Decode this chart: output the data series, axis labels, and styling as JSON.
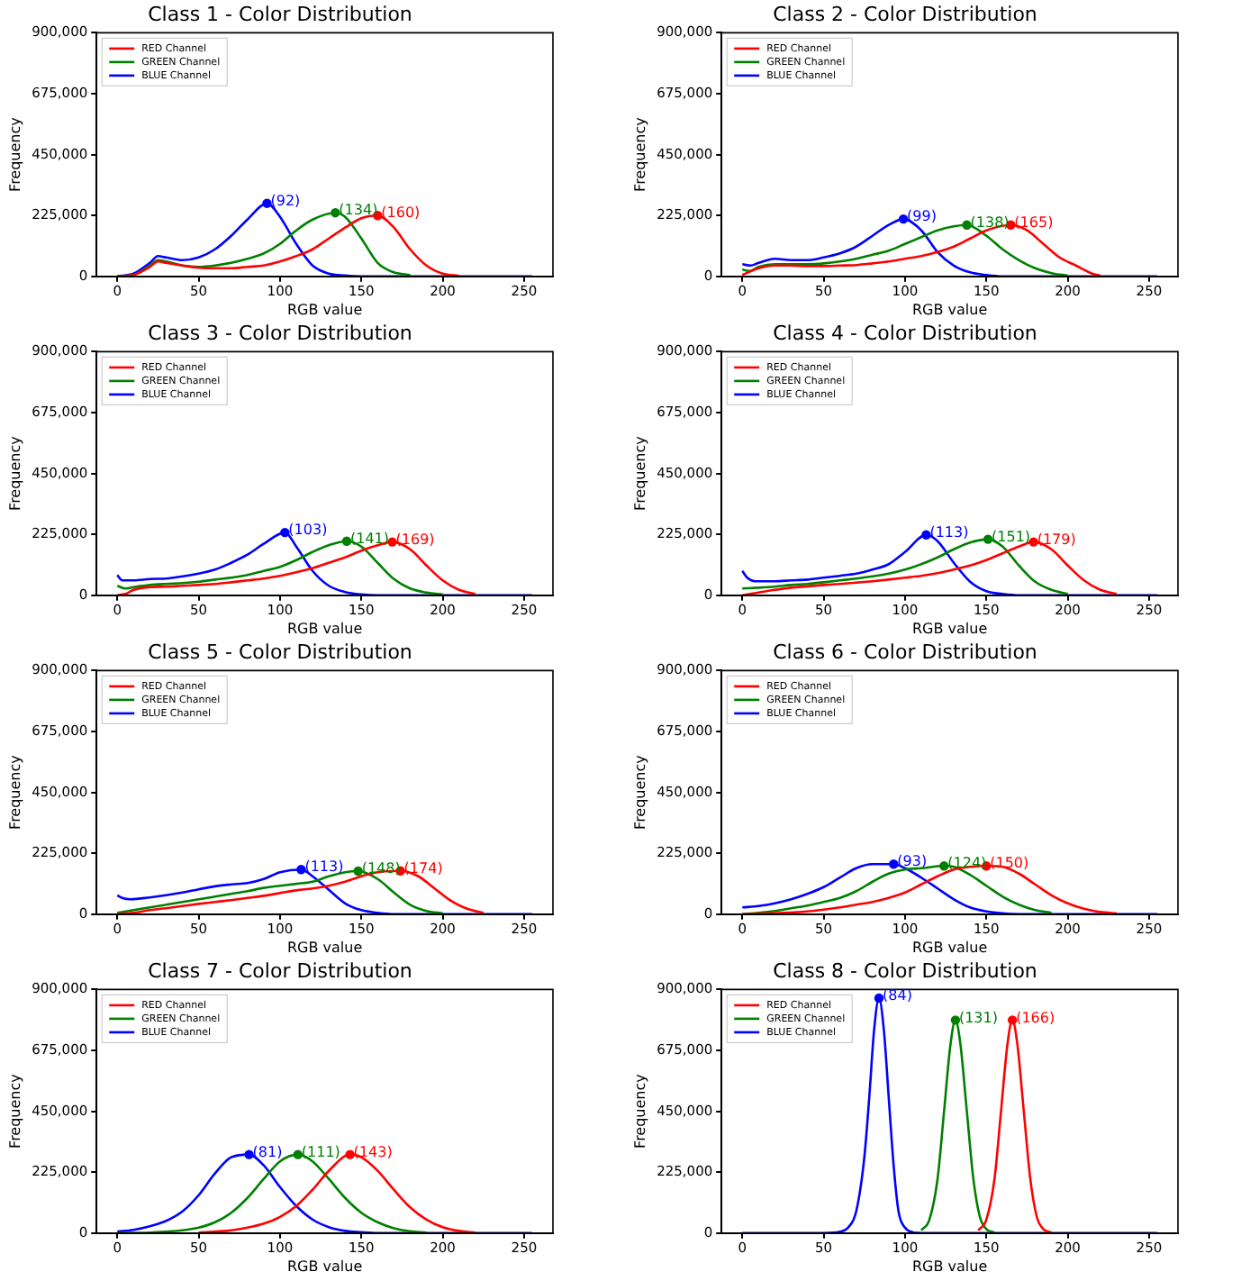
{
  "chart_data": [
    {
      "type": "line",
      "title": "Class 1 - Color Distribution",
      "xlabel": "RGB value",
      "ylabel": "Frequency",
      "legend": "top left",
      "xlim": [
        -12.75,
        267.75
      ],
      "xticks": [
        0,
        50,
        100,
        150,
        200,
        250
      ],
      "ylim": [
        0,
        900000
      ],
      "yticks": [
        {
          "value": 0,
          "label": "0"
        },
        {
          "value": 225000,
          "label": "225,000"
        },
        {
          "value": 450000,
          "label": "450,000"
        },
        {
          "value": 675000,
          "label": "675,000"
        },
        {
          "value": 900000,
          "label": "900,000"
        }
      ],
      "series": [
        {
          "name": "RED Channel",
          "color": "#ff0000",
          "x": [
            0,
            10,
            20,
            25,
            30,
            40,
            50,
            60,
            70,
            80,
            90,
            100,
            110,
            120,
            130,
            140,
            150,
            160,
            170,
            180,
            190,
            200,
            210
          ],
          "values": [
            0,
            5000,
            35000,
            55000,
            50000,
            40000,
            32000,
            30000,
            30000,
            35000,
            40000,
            55000,
            75000,
            100000,
            140000,
            180000,
            215000,
            225000,
            180000,
            100000,
            40000,
            10000,
            2000
          ]
        },
        {
          "name": "GREEN Channel",
          "color": "#008000",
          "x": [
            0,
            10,
            20,
            25,
            30,
            40,
            50,
            60,
            70,
            80,
            90,
            100,
            110,
            120,
            134,
            140,
            150,
            160,
            170,
            180
          ],
          "values": [
            0,
            5000,
            40000,
            60000,
            55000,
            40000,
            35000,
            40000,
            50000,
            65000,
            85000,
            120000,
            170000,
            210000,
            235000,
            220000,
            140000,
            50000,
            15000,
            5000
          ]
        },
        {
          "name": "BLUE Channel",
          "color": "#0000ff",
          "x": [
            0,
            10,
            20,
            25,
            30,
            40,
            50,
            60,
            70,
            80,
            92,
            100,
            110,
            120,
            130,
            140,
            150,
            255
          ],
          "values": [
            0,
            10000,
            50000,
            75000,
            70000,
            60000,
            70000,
            100000,
            150000,
            210000,
            270000,
            220000,
            120000,
            40000,
            10000,
            3000,
            0,
            0
          ]
        }
      ],
      "annotations": [
        {
          "text": "(160)",
          "x": 160,
          "y": 225000
        },
        {
          "text": "(134)",
          "x": 134,
          "y": 235000
        },
        {
          "text": "(92)",
          "x": 92,
          "y": 270000
        }
      ]
    },
    {
      "type": "line",
      "title": "Class 2 - Color Distribution",
      "xlabel": "RGB value",
      "ylabel": "Frequency",
      "legend": "top left",
      "xlim": [
        -12.75,
        267.75
      ],
      "xticks": [
        0,
        50,
        100,
        150,
        200,
        250
      ],
      "ylim": [
        0,
        900000
      ],
      "yticks": [
        {
          "value": 0,
          "label": "0"
        },
        {
          "value": 225000,
          "label": "225,000"
        },
        {
          "value": 450000,
          "label": "450,000"
        },
        {
          "value": 675000,
          "label": "675,000"
        },
        {
          "value": 900000,
          "label": "900,000"
        }
      ],
      "series": [
        {
          "name": "RED Channel",
          "color": "#ff0000",
          "x": [
            0,
            10,
            20,
            30,
            40,
            50,
            60,
            70,
            80,
            90,
            100,
            110,
            120,
            130,
            140,
            150,
            165,
            175,
            185,
            195,
            205,
            215,
            220
          ],
          "values": [
            5000,
            30000,
            40000,
            40000,
            38000,
            38000,
            40000,
            42000,
            48000,
            55000,
            65000,
            75000,
            90000,
            110000,
            140000,
            170000,
            190000,
            170000,
            120000,
            70000,
            40000,
            10000,
            3000
          ]
        },
        {
          "name": "GREEN Channel",
          "color": "#008000",
          "x": [
            0,
            5,
            10,
            20,
            30,
            40,
            50,
            60,
            70,
            80,
            90,
            100,
            110,
            120,
            130,
            138,
            150,
            160,
            170,
            180,
            190,
            200
          ],
          "values": [
            25000,
            20000,
            35000,
            45000,
            45000,
            45000,
            48000,
            55000,
            65000,
            80000,
            95000,
            120000,
            145000,
            170000,
            185000,
            190000,
            150000,
            100000,
            60000,
            30000,
            12000,
            3000
          ]
        },
        {
          "name": "BLUE Channel",
          "color": "#0000ff",
          "x": [
            0,
            5,
            10,
            20,
            30,
            40,
            50,
            60,
            70,
            80,
            90,
            99,
            110,
            120,
            130,
            140,
            150,
            160,
            255
          ],
          "values": [
            45000,
            40000,
            50000,
            65000,
            60000,
            60000,
            70000,
            85000,
            110000,
            150000,
            190000,
            212000,
            170000,
            90000,
            40000,
            15000,
            5000,
            0,
            0
          ]
        }
      ],
      "annotations": [
        {
          "text": "(165)",
          "x": 165,
          "y": 190000
        },
        {
          "text": "(138)",
          "x": 138,
          "y": 190000
        },
        {
          "text": "(99)",
          "x": 99,
          "y": 212000
        }
      ]
    },
    {
      "type": "line",
      "title": "Class 3 - Color Distribution",
      "xlabel": "RGB value",
      "ylabel": "Frequency",
      "legend": "top left",
      "xlim": [
        -12.75,
        267.75
      ],
      "xticks": [
        0,
        50,
        100,
        150,
        200,
        250
      ],
      "ylim": [
        0,
        900000
      ],
      "yticks": [
        {
          "value": 0,
          "label": "0"
        },
        {
          "value": 225000,
          "label": "225,000"
        },
        {
          "value": 450000,
          "label": "450,000"
        },
        {
          "value": 675000,
          "label": "675,000"
        },
        {
          "value": 900000,
          "label": "900,000"
        }
      ],
      "series": [
        {
          "name": "RED Channel",
          "color": "#ff0000",
          "x": [
            0,
            5,
            10,
            20,
            30,
            40,
            50,
            60,
            70,
            80,
            90,
            100,
            110,
            120,
            130,
            140,
            150,
            160,
            169,
            180,
            190,
            200,
            210,
            220
          ],
          "values": [
            0,
            5000,
            20000,
            30000,
            32000,
            35000,
            38000,
            42000,
            48000,
            55000,
            62000,
            72000,
            85000,
            100000,
            120000,
            140000,
            165000,
            185000,
            197000,
            170000,
            110000,
            55000,
            20000,
            5000
          ]
        },
        {
          "name": "GREEN Channel",
          "color": "#008000",
          "x": [
            0,
            5,
            10,
            20,
            30,
            40,
            50,
            60,
            70,
            80,
            90,
            100,
            110,
            120,
            130,
            141,
            150,
            160,
            170,
            180,
            190,
            200
          ],
          "values": [
            35000,
            25000,
            30000,
            38000,
            42000,
            45000,
            50000,
            58000,
            65000,
            75000,
            90000,
            105000,
            130000,
            160000,
            185000,
            200000,
            180000,
            120000,
            60000,
            25000,
            10000,
            3000
          ]
        },
        {
          "name": "BLUE Channel",
          "color": "#0000ff",
          "x": [
            0,
            3,
            10,
            20,
            30,
            40,
            50,
            60,
            70,
            80,
            90,
            103,
            110,
            120,
            130,
            140,
            150,
            160,
            255
          ],
          "values": [
            75000,
            55000,
            55000,
            60000,
            62000,
            70000,
            80000,
            95000,
            120000,
            150000,
            190000,
            232000,
            180000,
            90000,
            35000,
            12000,
            3000,
            0,
            0
          ]
        }
      ],
      "annotations": [
        {
          "text": "(169)",
          "x": 169,
          "y": 197000
        },
        {
          "text": "(141)",
          "x": 141,
          "y": 200000
        },
        {
          "text": "(103)",
          "x": 103,
          "y": 232000
        }
      ]
    },
    {
      "type": "line",
      "title": "Class 4 - Color Distribution",
      "xlabel": "RGB value",
      "ylabel": "Frequency",
      "legend": "top left",
      "xlim": [
        -12.75,
        267.75
      ],
      "xticks": [
        0,
        50,
        100,
        150,
        200,
        250
      ],
      "ylim": [
        0,
        900000
      ],
      "yticks": [
        {
          "value": 0,
          "label": "0"
        },
        {
          "value": 225000,
          "label": "225,000"
        },
        {
          "value": 450000,
          "label": "450,000"
        },
        {
          "value": 675000,
          "label": "675,000"
        },
        {
          "value": 900000,
          "label": "900,000"
        }
      ],
      "series": [
        {
          "name": "RED Channel",
          "color": "#ff0000",
          "x": [
            0,
            10,
            20,
            30,
            40,
            50,
            60,
            70,
            80,
            90,
            100,
            110,
            120,
            130,
            140,
            150,
            160,
            170,
            179,
            190,
            200,
            210,
            220,
            230
          ],
          "values": [
            0,
            10000,
            20000,
            28000,
            33000,
            38000,
            42000,
            47000,
            52000,
            58000,
            65000,
            72000,
            82000,
            95000,
            110000,
            130000,
            155000,
            180000,
            197000,
            170000,
            110000,
            55000,
            20000,
            5000
          ]
        },
        {
          "name": "GREEN Channel",
          "color": "#008000",
          "x": [
            0,
            10,
            20,
            30,
            40,
            50,
            60,
            70,
            80,
            90,
            100,
            110,
            120,
            130,
            140,
            151,
            160,
            170,
            180,
            190,
            200
          ],
          "values": [
            25000,
            28000,
            32000,
            38000,
            42000,
            48000,
            55000,
            62000,
            70000,
            80000,
            95000,
            115000,
            140000,
            170000,
            195000,
            207000,
            180000,
            110000,
            50000,
            20000,
            5000
          ]
        },
        {
          "name": "BLUE Channel",
          "color": "#0000ff",
          "x": [
            0,
            3,
            8,
            20,
            30,
            40,
            50,
            60,
            70,
            80,
            90,
            100,
            113,
            120,
            130,
            140,
            150,
            160,
            170,
            255
          ],
          "values": [
            90000,
            65000,
            52000,
            52000,
            55000,
            58000,
            65000,
            72000,
            80000,
            95000,
            115000,
            160000,
            223000,
            200000,
            120000,
            50000,
            15000,
            5000,
            0,
            0
          ]
        }
      ],
      "annotations": [
        {
          "text": "(179)",
          "x": 179,
          "y": 197000
        },
        {
          "text": "(151)",
          "x": 151,
          "y": 207000
        },
        {
          "text": "(113)",
          "x": 113,
          "y": 223000
        }
      ]
    },
    {
      "type": "line",
      "title": "Class 5 - Color Distribution",
      "xlabel": "RGB value",
      "ylabel": "Frequency",
      "legend": "top left",
      "xlim": [
        -12.75,
        267.75
      ],
      "xticks": [
        0,
        50,
        100,
        150,
        200,
        250
      ],
      "ylim": [
        0,
        900000
      ],
      "yticks": [
        {
          "value": 0,
          "label": "0"
        },
        {
          "value": 225000,
          "label": "225,000"
        },
        {
          "value": 450000,
          "label": "450,000"
        },
        {
          "value": 675000,
          "label": "675,000"
        },
        {
          "value": 900000,
          "label": "900,000"
        }
      ],
      "series": [
        {
          "name": "RED Channel",
          "color": "#ff0000",
          "x": [
            0,
            10,
            20,
            30,
            40,
            50,
            60,
            70,
            80,
            90,
            100,
            110,
            120,
            130,
            140,
            150,
            160,
            174,
            185,
            195,
            205,
            215,
            225
          ],
          "values": [
            0,
            5000,
            15000,
            22000,
            30000,
            38000,
            45000,
            52000,
            60000,
            68000,
            78000,
            88000,
            95000,
            105000,
            120000,
            140000,
            155000,
            160000,
            140000,
            95000,
            50000,
            20000,
            5000
          ]
        },
        {
          "name": "GREEN Channel",
          "color": "#008000",
          "x": [
            0,
            10,
            20,
            30,
            40,
            50,
            60,
            70,
            80,
            90,
            100,
            110,
            120,
            130,
            140,
            148,
            160,
            170,
            180,
            190,
            200
          ],
          "values": [
            5000,
            15000,
            25000,
            35000,
            45000,
            55000,
            65000,
            75000,
            85000,
            97000,
            105000,
            112000,
            120000,
            140000,
            155000,
            159000,
            130000,
            80000,
            35000,
            12000,
            3000
          ]
        },
        {
          "name": "BLUE Channel",
          "color": "#0000ff",
          "x": [
            0,
            3,
            8,
            20,
            30,
            40,
            50,
            60,
            70,
            80,
            90,
            100,
            113,
            120,
            130,
            140,
            150,
            160,
            170,
            255
          ],
          "values": [
            70000,
            60000,
            55000,
            62000,
            70000,
            80000,
            92000,
            103000,
            110000,
            115000,
            130000,
            155000,
            165000,
            140000,
            90000,
            40000,
            15000,
            5000,
            0,
            0
          ]
        }
      ],
      "annotations": [
        {
          "text": "(174)",
          "x": 174,
          "y": 160000
        },
        {
          "text": "(148)",
          "x": 148,
          "y": 159000
        },
        {
          "text": "(113)",
          "x": 113,
          "y": 165000
        }
      ]
    },
    {
      "type": "line",
      "title": "Class 6 - Color Distribution",
      "xlabel": "RGB value",
      "ylabel": "Frequency",
      "legend": "top left",
      "xlim": [
        -12.75,
        267.75
      ],
      "xticks": [
        0,
        50,
        100,
        150,
        200,
        250
      ],
      "ylim": [
        0,
        900000
      ],
      "yticks": [
        {
          "value": 0,
          "label": "0"
        },
        {
          "value": 225000,
          "label": "225,000"
        },
        {
          "value": 450000,
          "label": "450,000"
        },
        {
          "value": 675000,
          "label": "675,000"
        },
        {
          "value": 900000,
          "label": "900,000"
        }
      ],
      "series": [
        {
          "name": "RED Channel",
          "color": "#ff0000",
          "x": [
            0,
            20,
            40,
            60,
            70,
            80,
            90,
            100,
            110,
            120,
            130,
            140,
            150,
            160,
            170,
            180,
            190,
            200,
            210,
            220,
            230
          ],
          "values": [
            0,
            3000,
            10000,
            25000,
            35000,
            45000,
            60000,
            80000,
            110000,
            140000,
            165000,
            175000,
            178000,
            175000,
            150000,
            110000,
            70000,
            40000,
            20000,
            8000,
            3000
          ]
        },
        {
          "name": "GREEN Channel",
          "color": "#008000",
          "x": [
            0,
            10,
            20,
            30,
            40,
            50,
            60,
            70,
            80,
            90,
            100,
            110,
            124,
            130,
            140,
            150,
            160,
            170,
            180,
            190
          ],
          "values": [
            0,
            5000,
            12000,
            22000,
            32000,
            45000,
            60000,
            85000,
            120000,
            150000,
            165000,
            170000,
            178000,
            175000,
            145000,
            105000,
            65000,
            35000,
            15000,
            5000
          ]
        },
        {
          "name": "BLUE Channel",
          "color": "#0000ff",
          "x": [
            0,
            10,
            20,
            30,
            40,
            50,
            60,
            70,
            80,
            93,
            100,
            110,
            120,
            130,
            140,
            150,
            160,
            170,
            255
          ],
          "values": [
            25000,
            30000,
            40000,
            55000,
            75000,
            100000,
            135000,
            170000,
            185000,
            185000,
            170000,
            135000,
            95000,
            55000,
            25000,
            10000,
            3000,
            0,
            0
          ]
        }
      ],
      "annotations": [
        {
          "text": "(150)",
          "x": 150,
          "y": 178000
        },
        {
          "text": "(124)",
          "x": 124,
          "y": 178000
        },
        {
          "text": "(93)",
          "x": 93,
          "y": 185000
        }
      ]
    },
    {
      "type": "line",
      "title": "Class 7 - Color Distribution",
      "xlabel": "RGB value",
      "ylabel": "Frequency",
      "legend": "top left",
      "xlim": [
        -12.75,
        267.75
      ],
      "xticks": [
        0,
        50,
        100,
        150,
        200,
        250
      ],
      "ylim": [
        0,
        900000
      ],
      "yticks": [
        {
          "value": 0,
          "label": "0"
        },
        {
          "value": 225000,
          "label": "225,000"
        },
        {
          "value": 450000,
          "label": "450,000"
        },
        {
          "value": 675000,
          "label": "675,000"
        },
        {
          "value": 900000,
          "label": "900,000"
        }
      ],
      "series": [
        {
          "name": "RED Channel",
          "color": "#ff0000",
          "x": [
            50,
            70,
            80,
            90,
            100,
            110,
            120,
            130,
            143,
            150,
            160,
            170,
            180,
            190,
            200,
            210,
            220
          ],
          "values": [
            2000,
            10000,
            20000,
            35000,
            60000,
            100000,
            160000,
            230000,
            290000,
            280000,
            230000,
            160000,
            95000,
            50000,
            22000,
            8000,
            2000
          ]
        },
        {
          "name": "GREEN Channel",
          "color": "#008000",
          "x": [
            0,
            20,
            40,
            50,
            60,
            70,
            80,
            90,
            100,
            111,
            120,
            130,
            140,
            150,
            160,
            170,
            180,
            190
          ],
          "values": [
            0,
            2000,
            10000,
            20000,
            40000,
            75000,
            130000,
            200000,
            265000,
            290000,
            265000,
            200000,
            130000,
            75000,
            40000,
            18000,
            7000,
            2000
          ]
        },
        {
          "name": "BLUE Channel",
          "color": "#0000ff",
          "x": [
            0,
            10,
            20,
            30,
            40,
            50,
            60,
            70,
            81,
            90,
            100,
            110,
            120,
            130,
            140,
            150,
            160,
            255
          ],
          "values": [
            5000,
            12000,
            25000,
            45000,
            80000,
            140000,
            220000,
            280000,
            290000,
            250000,
            170000,
            100000,
            50000,
            22000,
            8000,
            3000,
            0,
            0
          ]
        }
      ],
      "annotations": [
        {
          "text": "(143)",
          "x": 143,
          "y": 290000
        },
        {
          "text": "(111)",
          "x": 111,
          "y": 290000
        },
        {
          "text": "(81)",
          "x": 81,
          "y": 290000
        }
      ]
    },
    {
      "type": "line",
      "title": "Class 8 - Color Distribution",
      "xlabel": "RGB value",
      "ylabel": "Frequency",
      "legend": "top left",
      "xlim": [
        -12.75,
        267.75
      ],
      "xticks": [
        0,
        50,
        100,
        150,
        200,
        250
      ],
      "ylim": [
        0,
        900000
      ],
      "yticks": [
        {
          "value": 0,
          "label": "0"
        },
        {
          "value": 225000,
          "label": "225,000"
        },
        {
          "value": 450000,
          "label": "450,000"
        },
        {
          "value": 675000,
          "label": "675,000"
        },
        {
          "value": 900000,
          "label": "900,000"
        }
      ],
      "series": [
        {
          "name": "RED Channel",
          "color": "#ff0000",
          "x": [
            145,
            150,
            155,
            159,
            163,
            166,
            169,
            173,
            177,
            181,
            185,
            190
          ],
          "values": [
            10000,
            50000,
            200000,
            450000,
            700000,
            787000,
            700000,
            450000,
            200000,
            60000,
            15000,
            2000
          ]
        },
        {
          "name": "GREEN Channel",
          "color": "#008000",
          "x": [
            110,
            115,
            120,
            124,
            128,
            131,
            134,
            138,
            142,
            146,
            150,
            155
          ],
          "values": [
            10000,
            50000,
            200000,
            450000,
            700000,
            787000,
            700000,
            450000,
            200000,
            60000,
            15000,
            2000
          ]
        },
        {
          "name": "BLUE Channel",
          "color": "#0000ff",
          "x": [
            0,
            50,
            60,
            65,
            70,
            75,
            78,
            81,
            84,
            87,
            90,
            93,
            96,
            100,
            105,
            110,
            255
          ],
          "values": [
            0,
            0,
            5000,
            20000,
            80000,
            280000,
            500000,
            750000,
            868000,
            750000,
            500000,
            250000,
            80000,
            20000,
            3000,
            0,
            0
          ]
        }
      ],
      "annotations": [
        {
          "text": "(166)",
          "x": 166,
          "y": 787000
        },
        {
          "text": "(131)",
          "x": 131,
          "y": 787000
        },
        {
          "text": "(84)",
          "x": 84,
          "y": 868000
        }
      ]
    }
  ]
}
